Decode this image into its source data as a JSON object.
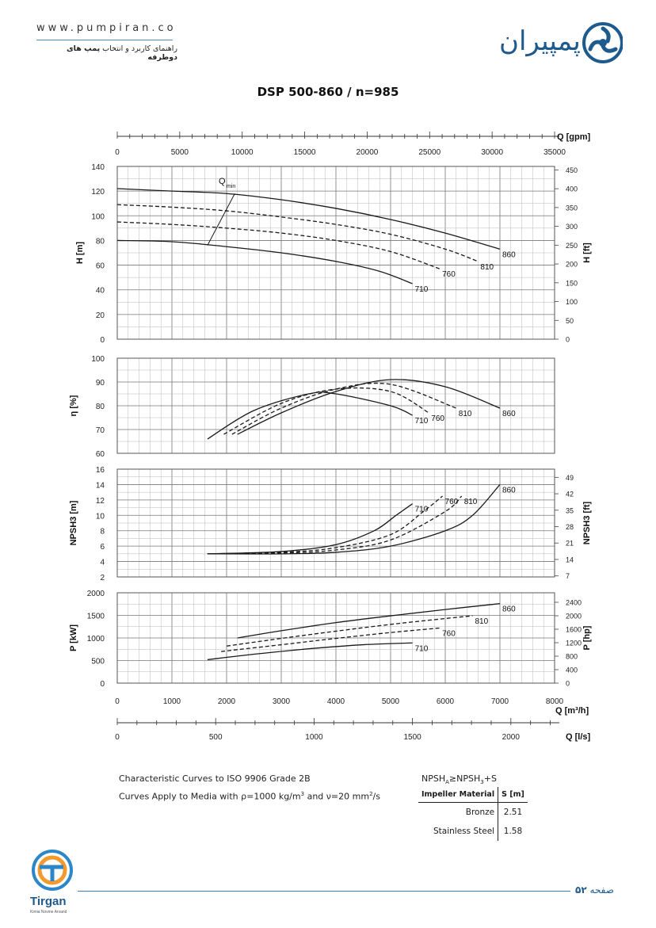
{
  "header": {
    "url": "www.pumpiran.co",
    "subtitle_pre": "راهنمای کاربرد و انتخاب",
    "subtitle_bold": "پمپ های دوطرفه",
    "brand_text": "پمپیران",
    "brand_color": "#1e5a8e"
  },
  "title": "DSP 500-860 / n=985",
  "chart_data": [
    {
      "type": "line",
      "name": "head",
      "ylabel": "H [m]",
      "ylabel_right": "H [ft]",
      "ylim": [
        0,
        140
      ],
      "yticks": [
        "0",
        "20",
        "40",
        "60",
        "80",
        "100",
        "120",
        "140"
      ],
      "yticks_right": [
        "0",
        "50",
        "100",
        "150",
        "200",
        "250",
        "300",
        "350",
        "400",
        "450"
      ],
      "series": [
        {
          "name": "860",
          "dashed": false,
          "x": [
            0,
            1000,
            2000,
            3000,
            4000,
            5000,
            6000,
            7000
          ],
          "y": [
            122,
            120,
            118,
            113,
            106,
            97,
            86,
            73
          ]
        },
        {
          "name": "810",
          "dashed": true,
          "x": [
            0,
            1000,
            2000,
            3000,
            4000,
            5000,
            6000,
            6600
          ],
          "y": [
            109,
            107,
            104,
            99,
            93,
            85,
            73,
            63
          ]
        },
        {
          "name": "760",
          "dashed": true,
          "x": [
            0,
            1000,
            2000,
            3000,
            4000,
            5000,
            5900
          ],
          "y": [
            95,
            93,
            90,
            86,
            80,
            71,
            57
          ]
        },
        {
          "name": "710",
          "dashed": false,
          "x": [
            0,
            1000,
            2000,
            3000,
            4000,
            4800,
            5400
          ],
          "y": [
            80,
            79,
            75,
            70,
            63,
            55,
            45
          ]
        }
      ],
      "qmin_label": "Q",
      "qmin_sub": "min",
      "qmin_line": {
        "x": [
          1650,
          2150
        ],
        "y": [
          76,
          118
        ]
      }
    },
    {
      "type": "line",
      "name": "efficiency",
      "ylabel": "η [%]",
      "ylim": [
        60,
        100
      ],
      "yticks": [
        "60",
        "70",
        "80",
        "90",
        "100"
      ],
      "series": [
        {
          "name": "860",
          "dashed": false,
          "x": [
            2200,
            3000,
            4000,
            5000,
            6000,
            7000
          ],
          "y": [
            68,
            77,
            86,
            91,
            88,
            79
          ]
        },
        {
          "name": "810",
          "dashed": true,
          "x": [
            2100,
            3000,
            4000,
            5000,
            6200
          ],
          "y": [
            68,
            79,
            87,
            89,
            79
          ]
        },
        {
          "name": "760",
          "dashed": true,
          "x": [
            1950,
            3000,
            4000,
            5000,
            5700
          ],
          "y": [
            68,
            81,
            87,
            86,
            77
          ]
        },
        {
          "name": "710",
          "dashed": false,
          "x": [
            1650,
            2500,
            3500,
            4000,
            5000,
            5400
          ],
          "y": [
            66,
            78,
            85,
            85,
            80,
            76
          ]
        }
      ]
    },
    {
      "type": "line",
      "name": "npsh",
      "ylabel": "NPSH3 [m]",
      "ylabel_right": "NPSH3 [ft]",
      "ylim": [
        2,
        16
      ],
      "yticks": [
        "2",
        "4",
        "6",
        "8",
        "10",
        "12",
        "14",
        "16"
      ],
      "yticks_right": [
        "7",
        "14",
        "21",
        "28",
        "35",
        "42",
        "49"
      ],
      "series": [
        {
          "name": "860",
          "dashed": false,
          "x": [
            1650,
            3000,
            4000,
            5000,
            6000,
            6500,
            7000
          ],
          "y": [
            5,
            5,
            5.2,
            6,
            8,
            10,
            14
          ]
        },
        {
          "name": "810",
          "dashed": true,
          "x": [
            1650,
            3000,
            4000,
            5000,
            6000,
            6300
          ],
          "y": [
            5,
            5.1,
            5.5,
            6.8,
            10.5,
            12.5
          ]
        },
        {
          "name": "760",
          "dashed": true,
          "x": [
            1650,
            3000,
            4000,
            5000,
            5600,
            5950
          ],
          "y": [
            5,
            5.2,
            5.8,
            7.5,
            10.5,
            12.5
          ]
        },
        {
          "name": "710",
          "dashed": false,
          "x": [
            1650,
            3000,
            4000,
            4700,
            5100,
            5400
          ],
          "y": [
            5,
            5.3,
            6.2,
            8,
            10,
            11.5
          ]
        }
      ]
    },
    {
      "type": "line",
      "name": "power",
      "ylabel": "P [kW]",
      "ylabel_right": "P [hp]",
      "ylim": [
        0,
        2000
      ],
      "yticks": [
        "0",
        "500",
        "1000",
        "1500",
        "2000"
      ],
      "yticks_right": [
        "0",
        "400",
        "800",
        "1200",
        "1600",
        "2000",
        "2400"
      ],
      "series": [
        {
          "name": "860",
          "dashed": false,
          "x": [
            2200,
            3000,
            4000,
            5000,
            6000,
            7000
          ],
          "y": [
            1000,
            1160,
            1340,
            1490,
            1630,
            1760
          ]
        },
        {
          "name": "810",
          "dashed": true,
          "x": [
            2000,
            3000,
            4000,
            5000,
            6000,
            6500
          ],
          "y": [
            820,
            990,
            1150,
            1300,
            1430,
            1490
          ]
        },
        {
          "name": "760",
          "dashed": true,
          "x": [
            1900,
            3000,
            4000,
            5000,
            5900
          ],
          "y": [
            700,
            850,
            990,
            1120,
            1220
          ]
        },
        {
          "name": "710",
          "dashed": false,
          "x": [
            1650,
            2500,
            3500,
            4500,
            5400
          ],
          "y": [
            520,
            640,
            760,
            850,
            890
          ]
        }
      ]
    }
  ],
  "axes": {
    "gpm_label": "Q [gpm]",
    "gpm_ticks": [
      "0",
      "5000",
      "10000",
      "15000",
      "20000",
      "25000",
      "30000",
      "35000"
    ],
    "m3h_label": "Q [m³/h]",
    "m3h_ticks": [
      "0",
      "1000",
      "2000",
      "3000",
      "4000",
      "5000",
      "6000",
      "7000",
      "8000"
    ],
    "ls_label": "Q [l/s]",
    "ls_ticks": [
      "0",
      "500",
      "1000",
      "1500",
      "2000"
    ]
  },
  "notes": {
    "line1": "Characteristic Curves to ISO 9906 Grade 2B",
    "line2_pre": "Curves Apply to Media with ",
    "line2_rho": "ρ=1000 kg/m",
    "line2_mid": " and ν=20 mm",
    "line2_end": "/s",
    "sup3": "3",
    "sup2": "2"
  },
  "npsh_table": {
    "caption": "NPSH",
    "caption_a_sub": "A",
    "caption_cmp": "≥NPSH",
    "caption_3_sub": "3",
    "caption_end": "+S",
    "col_material": "Impeller Material",
    "col_s": "S [m]",
    "rows": [
      {
        "material": "Bronze",
        "s": "2.51"
      },
      {
        "material": "Stainless Steel",
        "s": "1.58"
      }
    ]
  },
  "footer": {
    "logo_text": "Tirgan",
    "logo_sub": "Kimia Novine Arvand",
    "page_label": "صفحه",
    "page_num": "۵۲"
  },
  "colors": {
    "accent": "#3a7fb8",
    "curve": "#1a1a1a",
    "grid": "#8a8a8a"
  }
}
